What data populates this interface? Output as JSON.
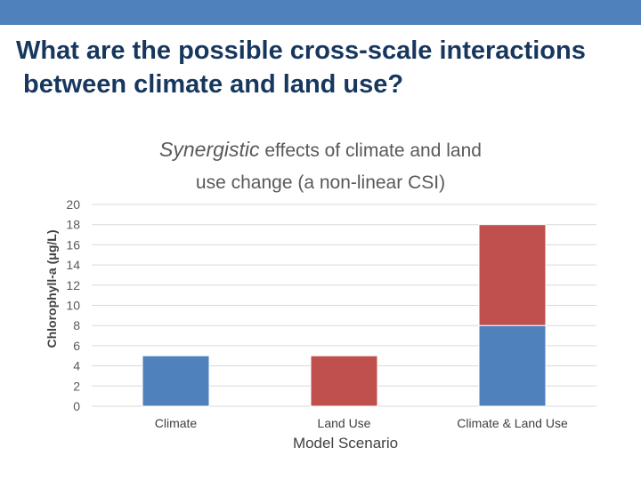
{
  "slide": {
    "title_line1": "What are the possible cross-scale interactions",
    "title_line2": " between climate and land use?",
    "accent_color": "#4f81bd"
  },
  "chart_data": {
    "type": "bar",
    "stacked": true,
    "title_emphasis": "Synergistic",
    "title_rest": " effects of climate and land",
    "title_line2": "use change (a non-linear CSI)",
    "xlabel": "Model Scenario",
    "ylabel": "Chlorophyll-a (μg/L)",
    "ylim": [
      0,
      20
    ],
    "yticks": [
      0,
      2,
      4,
      6,
      8,
      10,
      12,
      14,
      16,
      18,
      20
    ],
    "grid": true,
    "categories": [
      "Climate",
      "Land Use",
      "Climate & Land Use"
    ],
    "segments": [
      {
        "category": "Climate",
        "start": 0,
        "end": 5,
        "color": "#4f81bd"
      },
      {
        "category": "Land Use",
        "start": 0,
        "end": 5,
        "color": "#c0504d"
      },
      {
        "category": "Climate & Land Use",
        "start": 0,
        "end": 8,
        "color": "#4f81bd"
      },
      {
        "category": "Climate & Land Use",
        "start": 8,
        "end": 18,
        "color": "#c0504d"
      }
    ]
  }
}
